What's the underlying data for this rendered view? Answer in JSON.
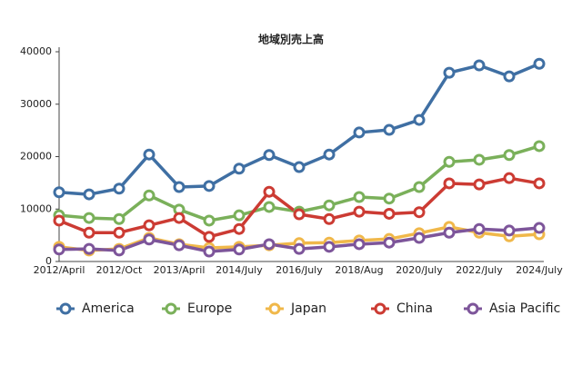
{
  "chart_data": {
    "type": "line",
    "title": "地域別売上高",
    "categories": [
      "2012/April",
      null,
      "2012/Oct",
      null,
      "2013/April",
      null,
      "2014/July",
      null,
      "2016/July",
      null,
      "2018/Aug",
      null,
      "2020/July",
      null,
      "2022/July",
      null,
      "2024/July"
    ],
    "series": [
      {
        "name": "America",
        "color": "#3f6fa3",
        "values": [
          13200,
          12800,
          13900,
          20400,
          14200,
          14400,
          17700,
          20300,
          18000,
          20400,
          24600,
          25100,
          27000,
          36000,
          37400,
          35300,
          37700
        ]
      },
      {
        "name": "Europe",
        "color": "#7ab05a",
        "values": [
          8800,
          8300,
          8100,
          12600,
          9900,
          7800,
          8800,
          10400,
          9500,
          10700,
          12300,
          12000,
          14200,
          19000,
          19400,
          20300,
          22000
        ]
      },
      {
        "name": "Japan",
        "color": "#f0b84a",
        "values": [
          2800,
          2100,
          2400,
          4500,
          3300,
          2600,
          2800,
          3100,
          3500,
          3600,
          4000,
          4300,
          5400,
          6600,
          5500,
          4800,
          5200
        ]
      },
      {
        "name": "China",
        "color": "#cc3b33",
        "values": [
          7800,
          5500,
          5500,
          6900,
          8300,
          4700,
          6200,
          13300,
          9000,
          8100,
          9500,
          9100,
          9400,
          14900,
          14700,
          15900,
          14900
        ]
      },
      {
        "name": "Asia Pacific",
        "color": "#7d559a",
        "values": [
          2300,
          2400,
          2100,
          4200,
          3100,
          1900,
          2300,
          3300,
          2400,
          2800,
          3300,
          3600,
          4500,
          5500,
          6200,
          5900,
          6400
        ]
      }
    ],
    "ylim": [
      0,
      40000
    ],
    "yticks": [
      0,
      10000,
      20000,
      30000,
      40000
    ],
    "grid": false
  }
}
